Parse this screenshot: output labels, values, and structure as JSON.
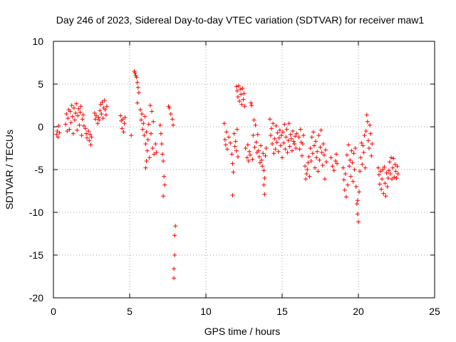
{
  "chart_data": {
    "type": "scatter",
    "title": "Day 246 of 2023, Sidereal Day-to-day VTEC variation (SDTVAR) for receiver maw1",
    "xlabel": "GPS time / hours",
    "ylabel": "SDTVAR / TECUs",
    "xlim": [
      0,
      25
    ],
    "ylim": [
      -20,
      10
    ],
    "x_ticks": [
      0,
      5,
      10,
      15,
      20,
      25
    ],
    "y_ticks": [
      -20,
      -15,
      -10,
      -5,
      0,
      5,
      10
    ],
    "x_tick_labels": [
      "0",
      "5",
      "10",
      "15",
      "20",
      "25"
    ],
    "y_tick_labels": [
      "-20",
      "-15",
      "-10",
      "-5",
      "0",
      "5",
      "10"
    ],
    "grid": true,
    "marker": "+",
    "series": [
      {
        "name": "SDTVAR",
        "color": "#ff0000",
        "points": [
          [
            0.2,
            -0.9
          ],
          [
            0.25,
            -0.5
          ],
          [
            0.3,
            -1.2
          ],
          [
            0.35,
            0.1
          ],
          [
            0.4,
            -0.7
          ],
          [
            0.8,
            0.3
          ],
          [
            0.85,
            1.5
          ],
          [
            0.9,
            -0.5
          ],
          [
            0.95,
            1.0
          ],
          [
            1.0,
            2.0
          ],
          [
            1.05,
            -0.3
          ],
          [
            1.1,
            1.8
          ],
          [
            1.15,
            0.5
          ],
          [
            1.2,
            2.5
          ],
          [
            1.25,
            1.2
          ],
          [
            1.3,
            -0.8
          ],
          [
            1.35,
            2.2
          ],
          [
            1.4,
            0.8
          ],
          [
            1.45,
            1.6
          ],
          [
            1.5,
            2.7
          ],
          [
            1.55,
            -0.4
          ],
          [
            1.6,
            1.3
          ],
          [
            1.65,
            2.1
          ],
          [
            1.7,
            0.2
          ],
          [
            1.75,
            1.7
          ],
          [
            1.8,
            2.4
          ],
          [
            1.85,
            -1.0
          ],
          [
            1.9,
            0.9
          ],
          [
            1.95,
            1.4
          ],
          [
            2.0,
            0.1
          ],
          [
            2.1,
            -0.2
          ],
          [
            2.15,
            -0.8
          ],
          [
            2.2,
            -1.3
          ],
          [
            2.3,
            -0.5
          ],
          [
            2.35,
            -1.6
          ],
          [
            2.4,
            -0.9
          ],
          [
            2.45,
            -2.1
          ],
          [
            2.5,
            -1.2
          ],
          [
            2.7,
            1.6
          ],
          [
            2.75,
            0.9
          ],
          [
            2.8,
            1.3
          ],
          [
            2.9,
            0.4
          ],
          [
            2.95,
            1.1
          ],
          [
            3.0,
            0.8
          ],
          [
            3.05,
            1.9
          ],
          [
            3.1,
            2.6
          ],
          [
            3.15,
            1.5
          ],
          [
            3.2,
            2.9
          ],
          [
            3.25,
            1.0
          ],
          [
            3.3,
            2.2
          ],
          [
            3.35,
            3.1
          ],
          [
            3.4,
            2.0
          ],
          [
            3.45,
            1.4
          ],
          [
            3.5,
            2.4
          ],
          [
            4.4,
            1.3
          ],
          [
            4.45,
            0.7
          ],
          [
            4.5,
            -0.2
          ],
          [
            4.55,
            0.9
          ],
          [
            4.6,
            -0.6
          ],
          [
            4.65,
            0.4
          ],
          [
            4.7,
            1.1
          ],
          [
            5.1,
            -1.0
          ],
          [
            5.3,
            6.5
          ],
          [
            5.35,
            6.3
          ],
          [
            5.4,
            6.0
          ],
          [
            5.45,
            5.8
          ],
          [
            5.5,
            5.2
          ],
          [
            5.55,
            4.6
          ],
          [
            5.6,
            4.0
          ],
          [
            5.5,
            2.8
          ],
          [
            5.7,
            2.0
          ],
          [
            5.75,
            0.8
          ],
          [
            5.8,
            1.5
          ],
          [
            5.85,
            -0.3
          ],
          [
            5.9,
            0.4
          ],
          [
            5.95,
            -1.0
          ],
          [
            6.0,
            1.2
          ],
          [
            6.05,
            -2.0
          ],
          [
            6.1,
            -0.6
          ],
          [
            6.15,
            -2.8
          ],
          [
            6.2,
            -1.5
          ],
          [
            6.25,
            0.3
          ],
          [
            6.3,
            -3.6
          ],
          [
            6.35,
            2.5
          ],
          [
            6.4,
            -0.8
          ],
          [
            6.45,
            1.8
          ],
          [
            6.5,
            -2.5
          ],
          [
            6.55,
            0.6
          ],
          [
            6.6,
            -3.2
          ],
          [
            6.7,
            -2.0
          ],
          [
            6.75,
            -3.0
          ],
          [
            6.05,
            -4.8
          ],
          [
            6.1,
            -4.0
          ],
          [
            7.0,
            0.2
          ],
          [
            7.05,
            -0.8
          ],
          [
            7.1,
            -2.0
          ],
          [
            7.15,
            -3.2
          ],
          [
            7.2,
            -4.0
          ],
          [
            7.25,
            -5.8
          ],
          [
            7.3,
            -6.8
          ],
          [
            7.2,
            -8.1
          ],
          [
            7.55,
            2.4
          ],
          [
            7.6,
            2.2
          ],
          [
            7.7,
            1.5
          ],
          [
            7.8,
            0.9
          ],
          [
            7.85,
            0.2
          ],
          [
            8.0,
            -11.6
          ],
          [
            7.95,
            -12.7
          ],
          [
            7.95,
            -15.0
          ],
          [
            7.9,
            -16.6
          ],
          [
            7.9,
            -17.7
          ],
          [
            11.2,
            0.4
          ],
          [
            11.25,
            -1.5
          ],
          [
            11.3,
            -2.1
          ],
          [
            11.35,
            -0.6
          ],
          [
            11.4,
            -2.6
          ],
          [
            11.5,
            -1.2
          ],
          [
            11.6,
            -1.9
          ],
          [
            11.7,
            -3.2
          ],
          [
            11.75,
            -4.3
          ],
          [
            11.8,
            -5.3
          ],
          [
            11.75,
            -8.0
          ],
          [
            11.85,
            -0.8
          ],
          [
            11.9,
            -2.3
          ],
          [
            11.95,
            -1.7
          ],
          [
            12.0,
            -2.8
          ],
          [
            12.05,
            -0.3
          ],
          [
            12.1,
            -3.5
          ],
          [
            12.0,
            4.7
          ],
          [
            12.05,
            4.2
          ],
          [
            12.1,
            3.5
          ],
          [
            12.15,
            4.8
          ],
          [
            12.2,
            3.0
          ],
          [
            12.25,
            4.4
          ],
          [
            12.3,
            3.8
          ],
          [
            12.35,
            2.6
          ],
          [
            12.4,
            4.5
          ],
          [
            12.45,
            3.2
          ],
          [
            12.5,
            3.9
          ],
          [
            12.55,
            2.4
          ],
          [
            12.6,
            -2.5
          ],
          [
            12.7,
            -3.6
          ],
          [
            12.75,
            -2.1
          ],
          [
            12.8,
            -4.0
          ],
          [
            12.85,
            -2.9
          ],
          [
            12.9,
            -3.3
          ],
          [
            12.95,
            2.8
          ],
          [
            13.0,
            2.5
          ],
          [
            13.05,
            -3.8
          ],
          [
            13.1,
            -1.0
          ],
          [
            13.15,
            0.8
          ],
          [
            13.2,
            -2.4
          ],
          [
            13.25,
            0.2
          ],
          [
            13.3,
            -1.8
          ],
          [
            13.35,
            -3.0
          ],
          [
            13.4,
            -0.9
          ],
          [
            13.45,
            -2.8
          ],
          [
            13.5,
            -3.5
          ],
          [
            13.55,
            -4.2
          ],
          [
            13.6,
            -2.2
          ],
          [
            13.65,
            -3.9
          ],
          [
            13.7,
            -4.6
          ],
          [
            13.75,
            -3.1
          ],
          [
            13.8,
            -5.1
          ],
          [
            13.85,
            -6.0
          ],
          [
            13.8,
            -6.8
          ],
          [
            13.85,
            -7.9
          ],
          [
            13.9,
            -3.4
          ],
          [
            13.95,
            -2.5
          ],
          [
            14.2,
            0.9
          ],
          [
            14.25,
            -1.0
          ],
          [
            14.3,
            -0.2
          ],
          [
            14.35,
            -2.0
          ],
          [
            14.4,
            0.4
          ],
          [
            14.45,
            -3.1
          ],
          [
            14.5,
            -1.4
          ],
          [
            14.55,
            -2.6
          ],
          [
            14.6,
            0.1
          ],
          [
            14.65,
            -1.8
          ],
          [
            14.7,
            -0.7
          ],
          [
            14.75,
            -2.9
          ],
          [
            14.8,
            -1.3
          ],
          [
            14.85,
            -0.4
          ],
          [
            14.9,
            -2.2
          ],
          [
            14.95,
            -1.0
          ],
          [
            15.0,
            -3.6
          ],
          [
            15.05,
            -0.6
          ],
          [
            15.1,
            -1.9
          ],
          [
            15.15,
            0.3
          ],
          [
            15.2,
            -2.6
          ],
          [
            15.25,
            -1.2
          ],
          [
            15.3,
            -0.3
          ],
          [
            15.35,
            -3.0
          ],
          [
            15.4,
            -1.6
          ],
          [
            15.45,
            0.4
          ],
          [
            15.5,
            -2.3
          ],
          [
            15.55,
            -0.9
          ],
          [
            15.6,
            -1.4
          ],
          [
            15.65,
            -2.8
          ],
          [
            15.7,
            -0.5
          ],
          [
            15.75,
            -1.7
          ],
          [
            15.8,
            -2.0
          ],
          [
            15.85,
            -1.1
          ],
          [
            15.9,
            -2.5
          ],
          [
            15.95,
            -0.8
          ],
          [
            16.1,
            -1.2
          ],
          [
            16.15,
            -2.6
          ],
          [
            16.2,
            -0.3
          ],
          [
            16.25,
            -1.8
          ],
          [
            16.3,
            -3.4
          ],
          [
            16.35,
            -2.0
          ],
          [
            16.4,
            -1.0
          ],
          [
            16.5,
            -4.6
          ],
          [
            16.55,
            -6.1
          ],
          [
            16.6,
            -5.5
          ],
          [
            16.65,
            -5.0
          ],
          [
            16.7,
            -4.2
          ],
          [
            16.75,
            -3.5
          ],
          [
            16.8,
            -5.8
          ],
          [
            16.85,
            -2.5
          ],
          [
            16.9,
            -4.0
          ],
          [
            16.95,
            -1.2
          ],
          [
            17.0,
            -3.1
          ],
          [
            17.05,
            -0.6
          ],
          [
            17.1,
            -2.2
          ],
          [
            17.15,
            -4.8
          ],
          [
            17.2,
            -1.7
          ],
          [
            17.25,
            -3.6
          ],
          [
            17.3,
            -2.9
          ],
          [
            17.35,
            -5.2
          ],
          [
            17.4,
            -1.0
          ],
          [
            17.45,
            -3.9
          ],
          [
            17.5,
            -2.4
          ],
          [
            17.55,
            -0.4
          ],
          [
            17.6,
            -3.0
          ],
          [
            17.65,
            -4.5
          ],
          [
            17.7,
            -2.0
          ],
          [
            17.75,
            -3.3
          ],
          [
            17.8,
            -6.1
          ],
          [
            17.85,
            -2.7
          ],
          [
            17.9,
            -4.1
          ],
          [
            18.2,
            -3.6
          ],
          [
            18.3,
            -4.6
          ],
          [
            18.4,
            -5.1
          ],
          [
            18.5,
            -4.0
          ],
          [
            18.55,
            -3.2
          ],
          [
            18.6,
            -4.3
          ],
          [
            19.0,
            -4.8
          ],
          [
            19.05,
            -6.2
          ],
          [
            19.1,
            -7.4
          ],
          [
            19.15,
            -5.5
          ],
          [
            19.2,
            -8.2
          ],
          [
            19.25,
            -3.3
          ],
          [
            19.3,
            -6.8
          ],
          [
            19.35,
            -2.1
          ],
          [
            19.4,
            -4.6
          ],
          [
            19.45,
            -3.9
          ],
          [
            19.5,
            -5.8
          ],
          [
            19.55,
            -2.8
          ],
          [
            19.6,
            -4.2
          ],
          [
            19.65,
            -6.4
          ],
          [
            19.7,
            -3.1
          ],
          [
            19.75,
            -5.0
          ],
          [
            19.8,
            -2.5
          ],
          [
            19.85,
            -7.0
          ],
          [
            19.9,
            -9.0
          ],
          [
            19.95,
            -10.2
          ],
          [
            20.0,
            -11.1
          ],
          [
            19.95,
            -8.6
          ],
          [
            20.05,
            -7.6
          ],
          [
            20.1,
            -5.2
          ],
          [
            20.15,
            -3.6
          ],
          [
            20.2,
            -1.9
          ],
          [
            20.25,
            -4.4
          ],
          [
            20.3,
            -2.2
          ],
          [
            20.35,
            -3.0
          ],
          [
            20.4,
            -1.0
          ],
          [
            20.45,
            -4.8
          ],
          [
            20.5,
            -0.5
          ],
          [
            20.55,
            1.4
          ],
          [
            20.6,
            0.6
          ],
          [
            20.65,
            -1.6
          ],
          [
            20.7,
            -2.5
          ],
          [
            20.75,
            0.2
          ],
          [
            20.8,
            -0.8
          ],
          [
            20.85,
            -3.4
          ],
          [
            20.9,
            -2.0
          ],
          [
            21.3,
            -4.8
          ],
          [
            21.35,
            -5.6
          ],
          [
            21.4,
            -6.7
          ],
          [
            21.45,
            -5.2
          ],
          [
            21.5,
            -7.3
          ],
          [
            21.55,
            -6.1
          ],
          [
            21.6,
            -5.0
          ],
          [
            21.65,
            -7.8
          ],
          [
            21.7,
            -4.7
          ],
          [
            21.75,
            -6.6
          ],
          [
            21.8,
            -8.1
          ],
          [
            21.85,
            -5.4
          ],
          [
            21.9,
            -7.0
          ],
          [
            21.95,
            -6.0
          ],
          [
            22.0,
            -5.1
          ],
          [
            22.05,
            -4.1
          ],
          [
            22.1,
            -5.5
          ],
          [
            22.15,
            -3.6
          ],
          [
            22.2,
            -6.1
          ],
          [
            22.25,
            -4.8
          ],
          [
            22.3,
            -3.7
          ],
          [
            22.35,
            -5.9
          ],
          [
            22.4,
            -4.4
          ],
          [
            22.45,
            -5.2
          ],
          [
            22.5,
            -6.0
          ],
          [
            22.55,
            -4.6
          ],
          [
            22.6,
            -5.5
          ]
        ]
      }
    ]
  }
}
